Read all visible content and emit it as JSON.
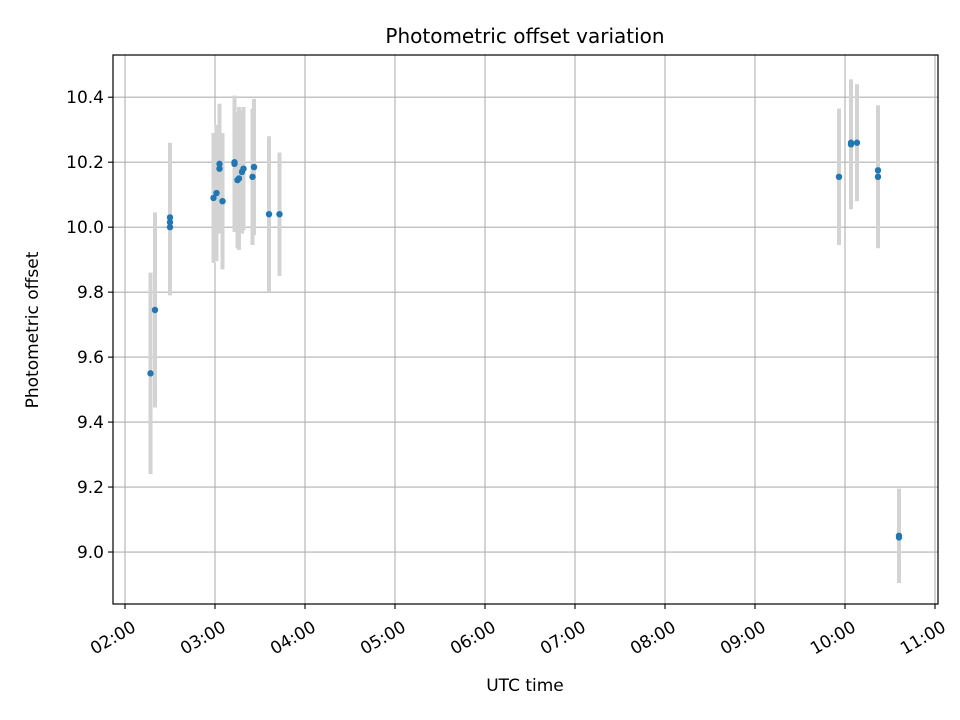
{
  "chart_data": {
    "type": "scatter",
    "title": "Photometric offset variation",
    "xlabel": "UTC time",
    "ylabel": "Photometric offset",
    "x_ticks": [
      "02:00",
      "03:00",
      "04:00",
      "05:00",
      "06:00",
      "07:00",
      "08:00",
      "09:00",
      "10:00",
      "11:00"
    ],
    "y_ticks": [
      "9.0",
      "9.2",
      "9.4",
      "9.6",
      "9.8",
      "10.0",
      "10.2",
      "10.4"
    ],
    "xlim": [
      "01:52",
      "11:02"
    ],
    "ylim": [
      8.84,
      10.53
    ],
    "grid": true,
    "colors": {
      "point": "#1f77b4",
      "errorbar": "#d3d3d3",
      "grid": "#b0b0b0"
    },
    "points": [
      {
        "x": "02:17",
        "y": 9.55,
        "err": 0.31
      },
      {
        "x": "02:20",
        "y": 9.745,
        "err": 0.3
      },
      {
        "x": "02:30",
        "y": 10.0,
        "err": 0.21
      },
      {
        "x": "02:30",
        "y": 10.015,
        "err": 0.22
      },
      {
        "x": "02:30",
        "y": 10.03,
        "err": 0.23
      },
      {
        "x": "02:59",
        "y": 10.09,
        "err": 0.2
      },
      {
        "x": "03:01",
        "y": 10.105,
        "err": 0.21
      },
      {
        "x": "03:03",
        "y": 10.18,
        "err": 0.2
      },
      {
        "x": "03:03",
        "y": 10.195,
        "err": 0.18
      },
      {
        "x": "03:05",
        "y": 10.08,
        "err": 0.21
      },
      {
        "x": "03:13",
        "y": 10.195,
        "err": 0.21
      },
      {
        "x": "03:13",
        "y": 10.2,
        "err": 0.2
      },
      {
        "x": "03:15",
        "y": 10.145,
        "err": 0.21
      },
      {
        "x": "03:16",
        "y": 10.15,
        "err": 0.22
      },
      {
        "x": "03:18",
        "y": 10.17,
        "err": 0.19
      },
      {
        "x": "03:19",
        "y": 10.18,
        "err": 0.19
      },
      {
        "x": "03:25",
        "y": 10.155,
        "err": 0.21
      },
      {
        "x": "03:26",
        "y": 10.185,
        "err": 0.21
      },
      {
        "x": "03:36",
        "y": 10.04,
        "err": 0.24
      },
      {
        "x": "03:43",
        "y": 10.04,
        "err": 0.19
      },
      {
        "x": "09:56",
        "y": 10.155,
        "err": 0.21
      },
      {
        "x": "10:04",
        "y": 10.255,
        "err": 0.2
      },
      {
        "x": "10:04",
        "y": 10.26,
        "err": 0.19
      },
      {
        "x": "10:08",
        "y": 10.26,
        "err": 0.18
      },
      {
        "x": "10:22",
        "y": 10.155,
        "err": 0.22
      },
      {
        "x": "10:22",
        "y": 10.175,
        "err": 0.2
      },
      {
        "x": "10:36",
        "y": 9.05,
        "err": 0.145
      },
      {
        "x": "10:36",
        "y": 9.045,
        "err": 0.14
      }
    ]
  }
}
